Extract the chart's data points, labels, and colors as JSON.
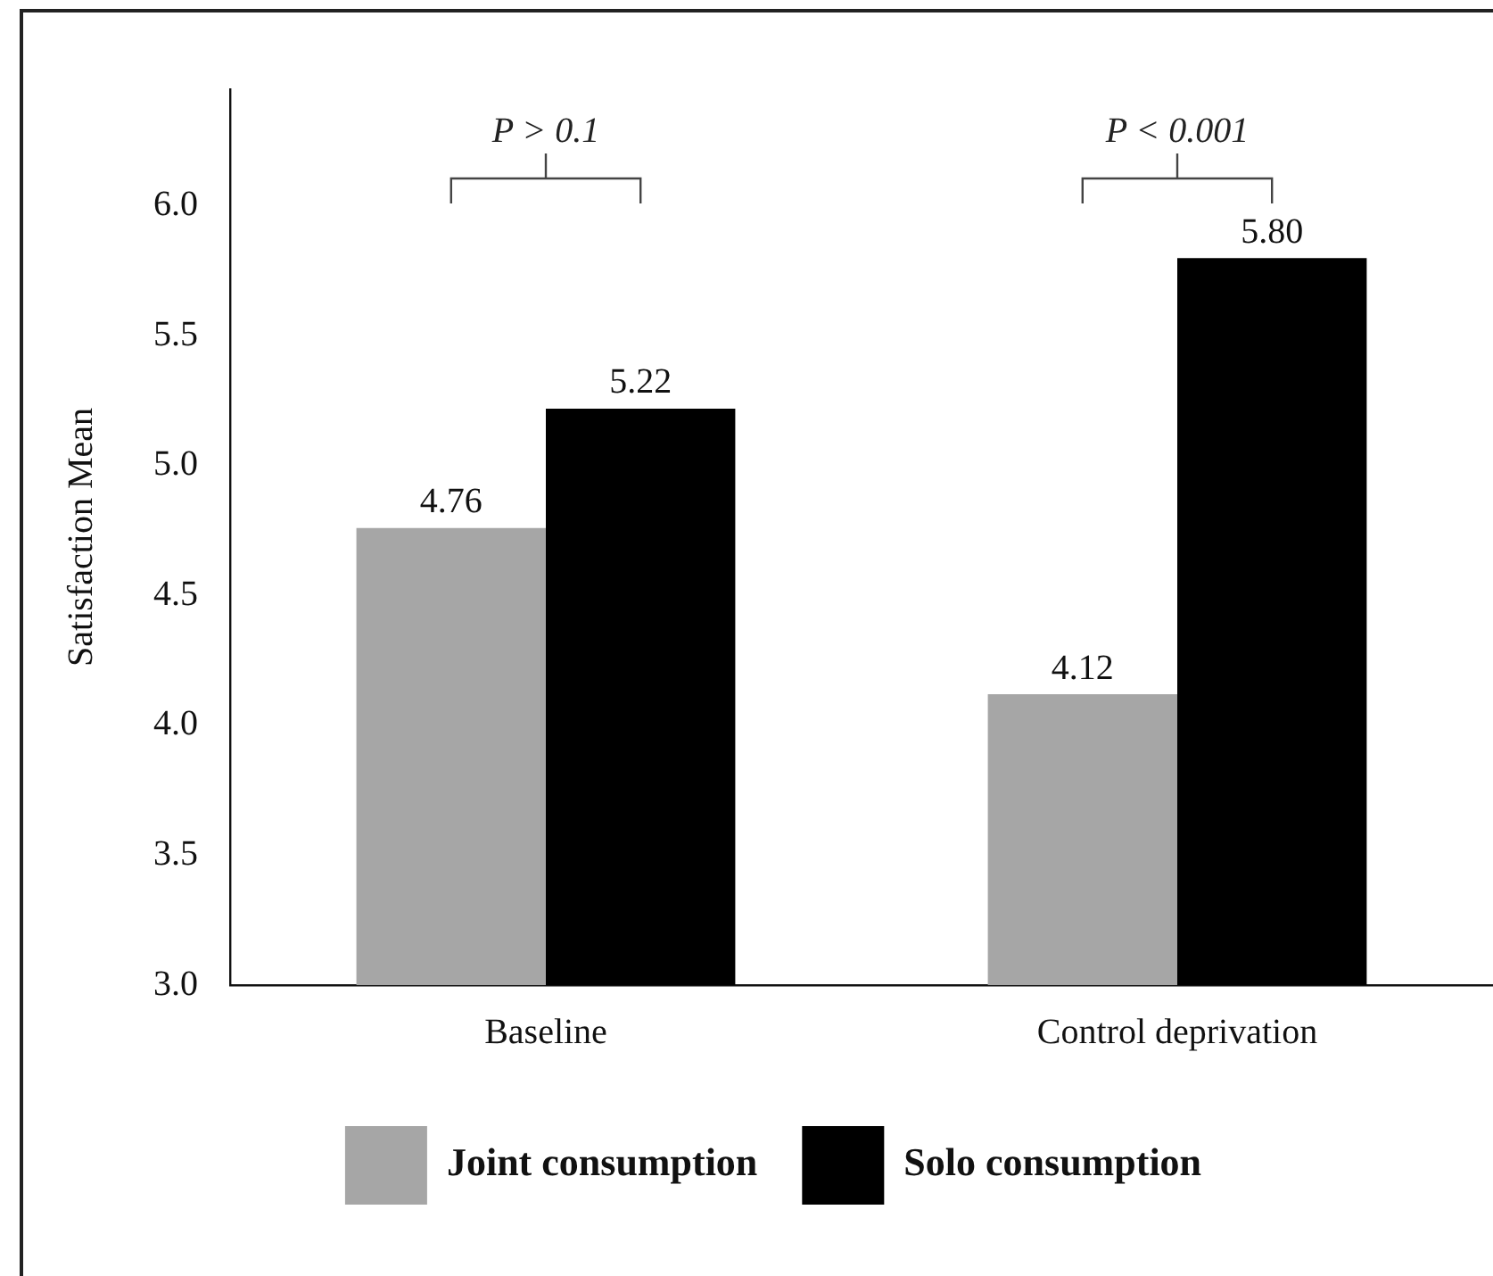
{
  "chart_data": {
    "type": "bar",
    "ylabel": "Satisfaction Mean",
    "categories": [
      "Baseline",
      "Control deprivation"
    ],
    "series": [
      {
        "name": "Joint consumption",
        "color": "#a6a6a6",
        "values": [
          4.76,
          4.12
        ],
        "value_labels": [
          "4.76",
          "4.12"
        ]
      },
      {
        "name": "Solo consumption",
        "color": "#000000",
        "values": [
          5.22,
          5.8
        ],
        "value_labels": [
          "5.22",
          "5.80"
        ]
      }
    ],
    "ylim": [
      3,
      6.45
    ],
    "yticks": [
      {
        "value": 3,
        "label": "3.0"
      },
      3.5,
      {
        "value": 4,
        "label": "4.0"
      },
      4.5,
      {
        "value": 5,
        "label": "5.0"
      },
      5.5,
      {
        "value": 6,
        "label": "6.0"
      }
    ],
    "grid": false,
    "legend": "bottom",
    "annotations": [
      "P > 0.1",
      "P < 0.001"
    ]
  }
}
